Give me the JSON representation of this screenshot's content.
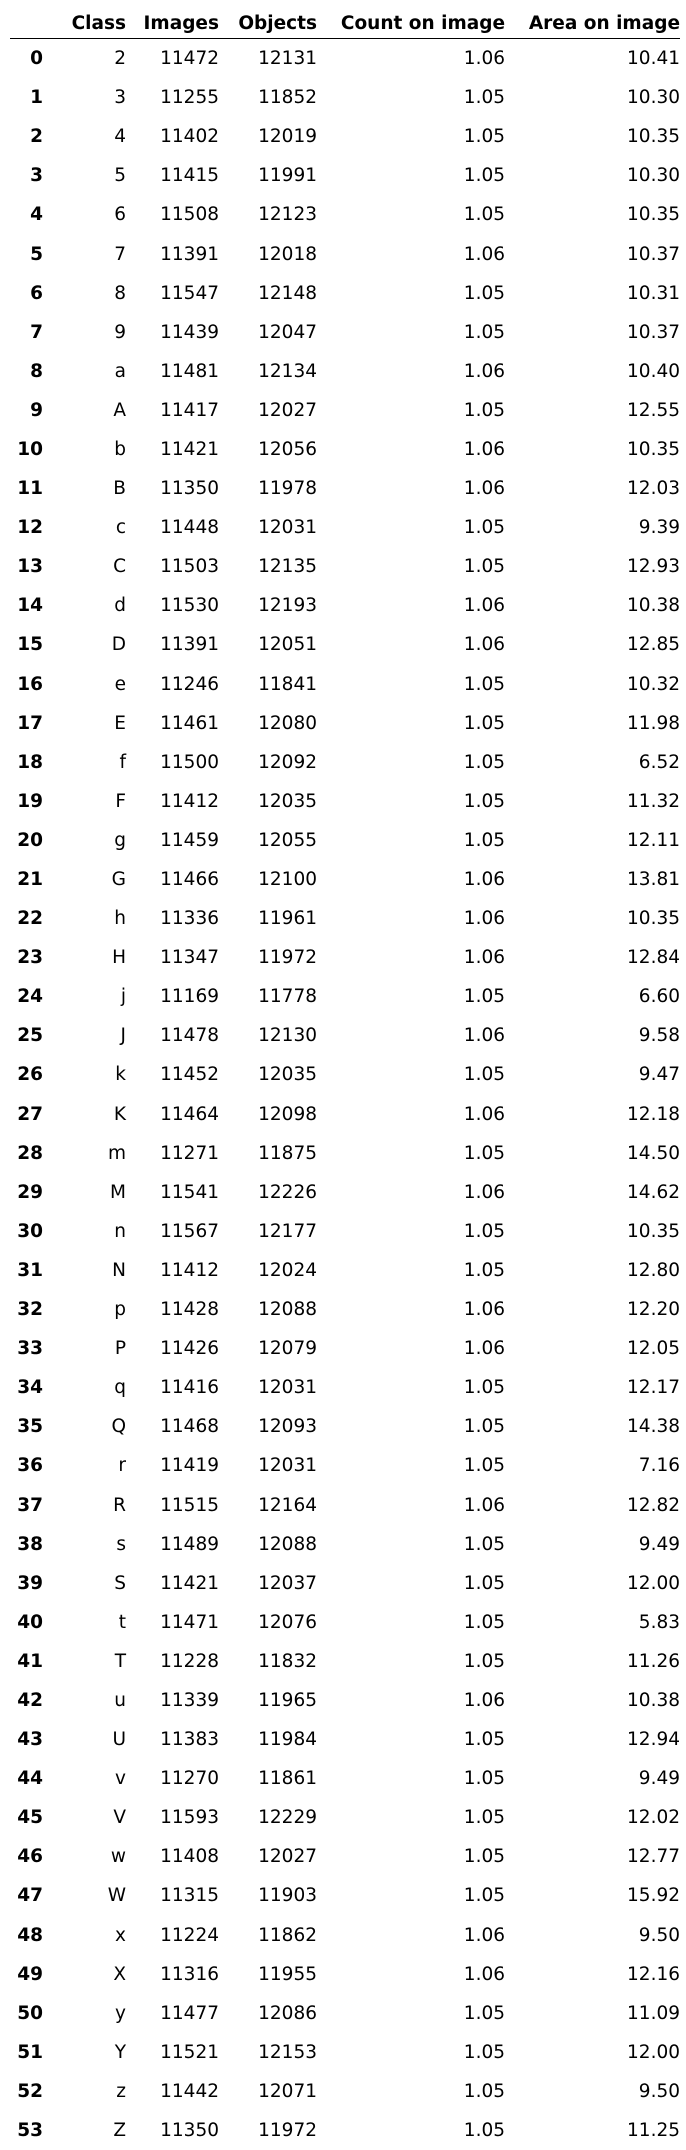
{
  "columns": [
    "",
    "Class",
    "Images",
    "Objects",
    "Count on image",
    "Area on image"
  ],
  "rows": [
    [
      "0",
      "2",
      "11472",
      "12131",
      "1.06",
      "10.41"
    ],
    [
      "1",
      "3",
      "11255",
      "11852",
      "1.05",
      "10.30"
    ],
    [
      "2",
      "4",
      "11402",
      "12019",
      "1.05",
      "10.35"
    ],
    [
      "3",
      "5",
      "11415",
      "11991",
      "1.05",
      "10.30"
    ],
    [
      "4",
      "6",
      "11508",
      "12123",
      "1.05",
      "10.35"
    ],
    [
      "5",
      "7",
      "11391",
      "12018",
      "1.06",
      "10.37"
    ],
    [
      "6",
      "8",
      "11547",
      "12148",
      "1.05",
      "10.31"
    ],
    [
      "7",
      "9",
      "11439",
      "12047",
      "1.05",
      "10.37"
    ],
    [
      "8",
      "a",
      "11481",
      "12134",
      "1.06",
      "10.40"
    ],
    [
      "9",
      "A",
      "11417",
      "12027",
      "1.05",
      "12.55"
    ],
    [
      "10",
      "b",
      "11421",
      "12056",
      "1.06",
      "10.35"
    ],
    [
      "11",
      "B",
      "11350",
      "11978",
      "1.06",
      "12.03"
    ],
    [
      "12",
      "c",
      "11448",
      "12031",
      "1.05",
      "9.39"
    ],
    [
      "13",
      "C",
      "11503",
      "12135",
      "1.05",
      "12.93"
    ],
    [
      "14",
      "d",
      "11530",
      "12193",
      "1.06",
      "10.38"
    ],
    [
      "15",
      "D",
      "11391",
      "12051",
      "1.06",
      "12.85"
    ],
    [
      "16",
      "e",
      "11246",
      "11841",
      "1.05",
      "10.32"
    ],
    [
      "17",
      "E",
      "11461",
      "12080",
      "1.05",
      "11.98"
    ],
    [
      "18",
      "f",
      "11500",
      "12092",
      "1.05",
      "6.52"
    ],
    [
      "19",
      "F",
      "11412",
      "12035",
      "1.05",
      "11.32"
    ],
    [
      "20",
      "g",
      "11459",
      "12055",
      "1.05",
      "12.11"
    ],
    [
      "21",
      "G",
      "11466",
      "12100",
      "1.06",
      "13.81"
    ],
    [
      "22",
      "h",
      "11336",
      "11961",
      "1.06",
      "10.35"
    ],
    [
      "23",
      "H",
      "11347",
      "11972",
      "1.06",
      "12.84"
    ],
    [
      "24",
      "j",
      "11169",
      "11778",
      "1.05",
      "6.60"
    ],
    [
      "25",
      "J",
      "11478",
      "12130",
      "1.06",
      "9.58"
    ],
    [
      "26",
      "k",
      "11452",
      "12035",
      "1.05",
      "9.47"
    ],
    [
      "27",
      "K",
      "11464",
      "12098",
      "1.06",
      "12.18"
    ],
    [
      "28",
      "m",
      "11271",
      "11875",
      "1.05",
      "14.50"
    ],
    [
      "29",
      "M",
      "11541",
      "12226",
      "1.06",
      "14.62"
    ],
    [
      "30",
      "n",
      "11567",
      "12177",
      "1.05",
      "10.35"
    ],
    [
      "31",
      "N",
      "11412",
      "12024",
      "1.05",
      "12.80"
    ],
    [
      "32",
      "p",
      "11428",
      "12088",
      "1.06",
      "12.20"
    ],
    [
      "33",
      "P",
      "11426",
      "12079",
      "1.06",
      "12.05"
    ],
    [
      "34",
      "q",
      "11416",
      "12031",
      "1.05",
      "12.17"
    ],
    [
      "35",
      "Q",
      "11468",
      "12093",
      "1.05",
      "14.38"
    ],
    [
      "36",
      "r",
      "11419",
      "12031",
      "1.05",
      "7.16"
    ],
    [
      "37",
      "R",
      "11515",
      "12164",
      "1.06",
      "12.82"
    ],
    [
      "38",
      "s",
      "11489",
      "12088",
      "1.05",
      "9.49"
    ],
    [
      "39",
      "S",
      "11421",
      "12037",
      "1.05",
      "12.00"
    ],
    [
      "40",
      "t",
      "11471",
      "12076",
      "1.05",
      "5.83"
    ],
    [
      "41",
      "T",
      "11228",
      "11832",
      "1.05",
      "11.26"
    ],
    [
      "42",
      "u",
      "11339",
      "11965",
      "1.06",
      "10.38"
    ],
    [
      "43",
      "U",
      "11383",
      "11984",
      "1.05",
      "12.94"
    ],
    [
      "44",
      "v",
      "11270",
      "11861",
      "1.05",
      "9.49"
    ],
    [
      "45",
      "V",
      "11593",
      "12229",
      "1.05",
      "12.02"
    ],
    [
      "46",
      "w",
      "11408",
      "12027",
      "1.05",
      "12.77"
    ],
    [
      "47",
      "W",
      "11315",
      "11903",
      "1.05",
      "15.92"
    ],
    [
      "48",
      "x",
      "11224",
      "11862",
      "1.06",
      "9.50"
    ],
    [
      "49",
      "X",
      "11316",
      "11955",
      "1.06",
      "12.16"
    ],
    [
      "50",
      "y",
      "11477",
      "12086",
      "1.05",
      "11.09"
    ],
    [
      "51",
      "Y",
      "11521",
      "12153",
      "1.05",
      "12.00"
    ],
    [
      "52",
      "z",
      "11442",
      "12071",
      "1.05",
      "9.50"
    ],
    [
      "53",
      "Z",
      "11350",
      "11972",
      "1.05",
      "11.25"
    ]
  ]
}
